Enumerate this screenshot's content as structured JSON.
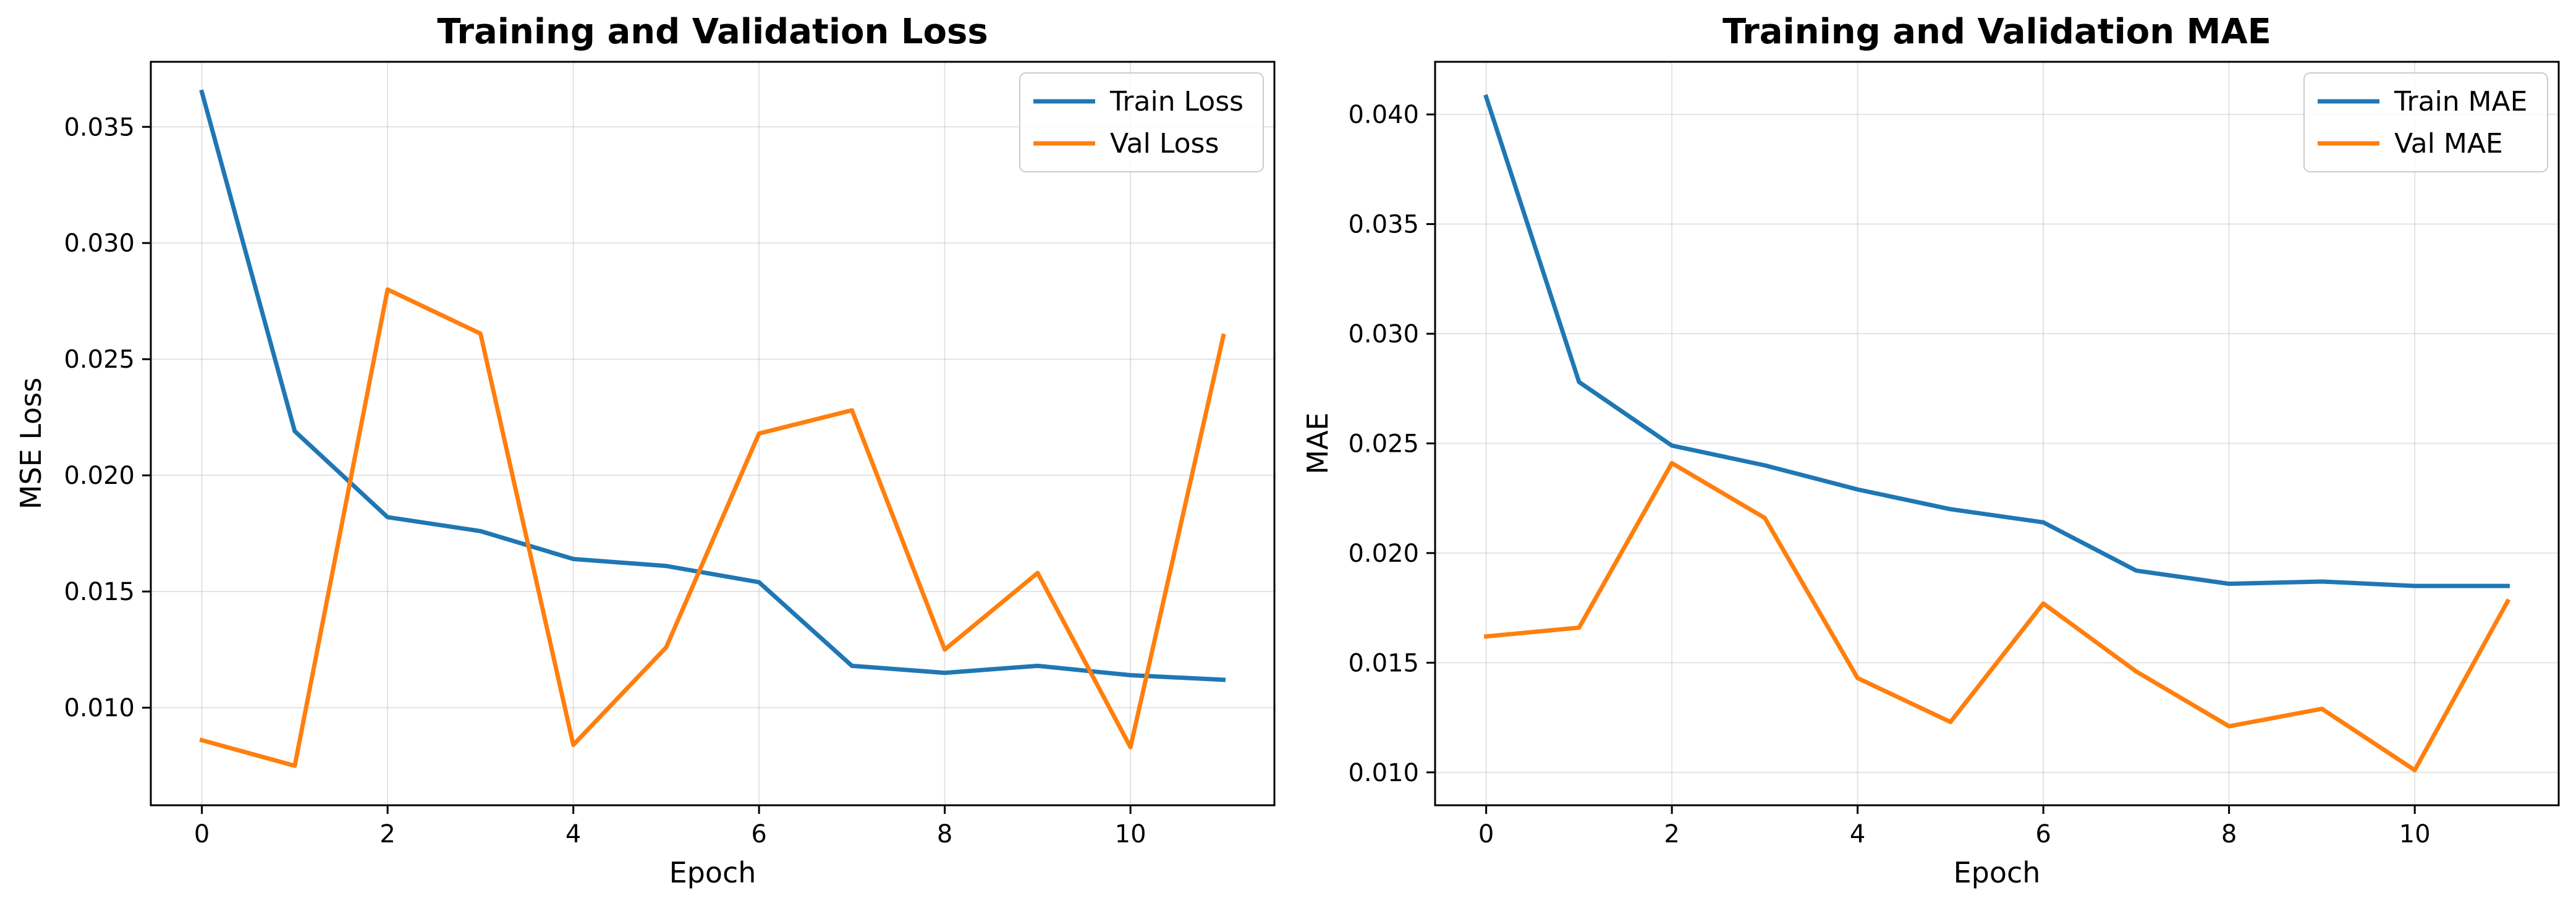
{
  "colors": {
    "train": "#1f77b4",
    "val": "#ff7f0e",
    "grid": "#b0b0b0"
  },
  "chart_data": [
    {
      "type": "line",
      "title": "Training and Validation Loss",
      "xlabel": "Epoch",
      "ylabel": "MSE Loss",
      "x": [
        0,
        1,
        2,
        3,
        4,
        5,
        6,
        7,
        8,
        9,
        10,
        11
      ],
      "xlim": [
        -0.55,
        11.55
      ],
      "ylim": [
        0.0058,
        0.0378
      ],
      "xticks": [
        0,
        2,
        4,
        6,
        8,
        10
      ],
      "xtick_labels": [
        "0",
        "2",
        "4",
        "6",
        "8",
        "10"
      ],
      "yticks": [
        0.01,
        0.015,
        0.02,
        0.025,
        0.03,
        0.035
      ],
      "ytick_labels": [
        "0.010",
        "0.015",
        "0.020",
        "0.025",
        "0.030",
        "0.035"
      ],
      "grid": true,
      "legend_position": "top-right",
      "series": [
        {
          "name": "Train Loss",
          "color": "#1f77b4",
          "values": [
            0.0365,
            0.0219,
            0.0182,
            0.0176,
            0.0164,
            0.0161,
            0.0154,
            0.0118,
            0.0115,
            0.0118,
            0.0114,
            0.0112
          ]
        },
        {
          "name": "Val Loss",
          "color": "#ff7f0e",
          "values": [
            0.0086,
            0.0075,
            0.028,
            0.0261,
            0.0084,
            0.0126,
            0.0218,
            0.0228,
            0.0125,
            0.0158,
            0.0083,
            0.026
          ]
        }
      ]
    },
    {
      "type": "line",
      "title": "Training and Validation MAE",
      "xlabel": "Epoch",
      "ylabel": "MAE",
      "x": [
        0,
        1,
        2,
        3,
        4,
        5,
        6,
        7,
        8,
        9,
        10,
        11
      ],
      "xlim": [
        -0.55,
        11.55
      ],
      "ylim": [
        0.0085,
        0.0424
      ],
      "xticks": [
        0,
        2,
        4,
        6,
        8,
        10
      ],
      "xtick_labels": [
        "0",
        "2",
        "4",
        "6",
        "8",
        "10"
      ],
      "yticks": [
        0.01,
        0.015,
        0.02,
        0.025,
        0.03,
        0.035,
        0.04
      ],
      "ytick_labels": [
        "0.010",
        "0.015",
        "0.020",
        "0.025",
        "0.030",
        "0.035",
        "0.040"
      ],
      "grid": true,
      "legend_position": "top-right",
      "series": [
        {
          "name": "Train MAE",
          "color": "#1f77b4",
          "values": [
            0.0408,
            0.0278,
            0.0249,
            0.024,
            0.0229,
            0.022,
            0.0214,
            0.0192,
            0.0186,
            0.0187,
            0.0185,
            0.0185
          ]
        },
        {
          "name": "Val MAE",
          "color": "#ff7f0e",
          "values": [
            0.0162,
            0.0166,
            0.0241,
            0.0216,
            0.0143,
            0.0123,
            0.0177,
            0.0146,
            0.0121,
            0.0129,
            0.0101,
            0.0178
          ]
        }
      ]
    }
  ]
}
